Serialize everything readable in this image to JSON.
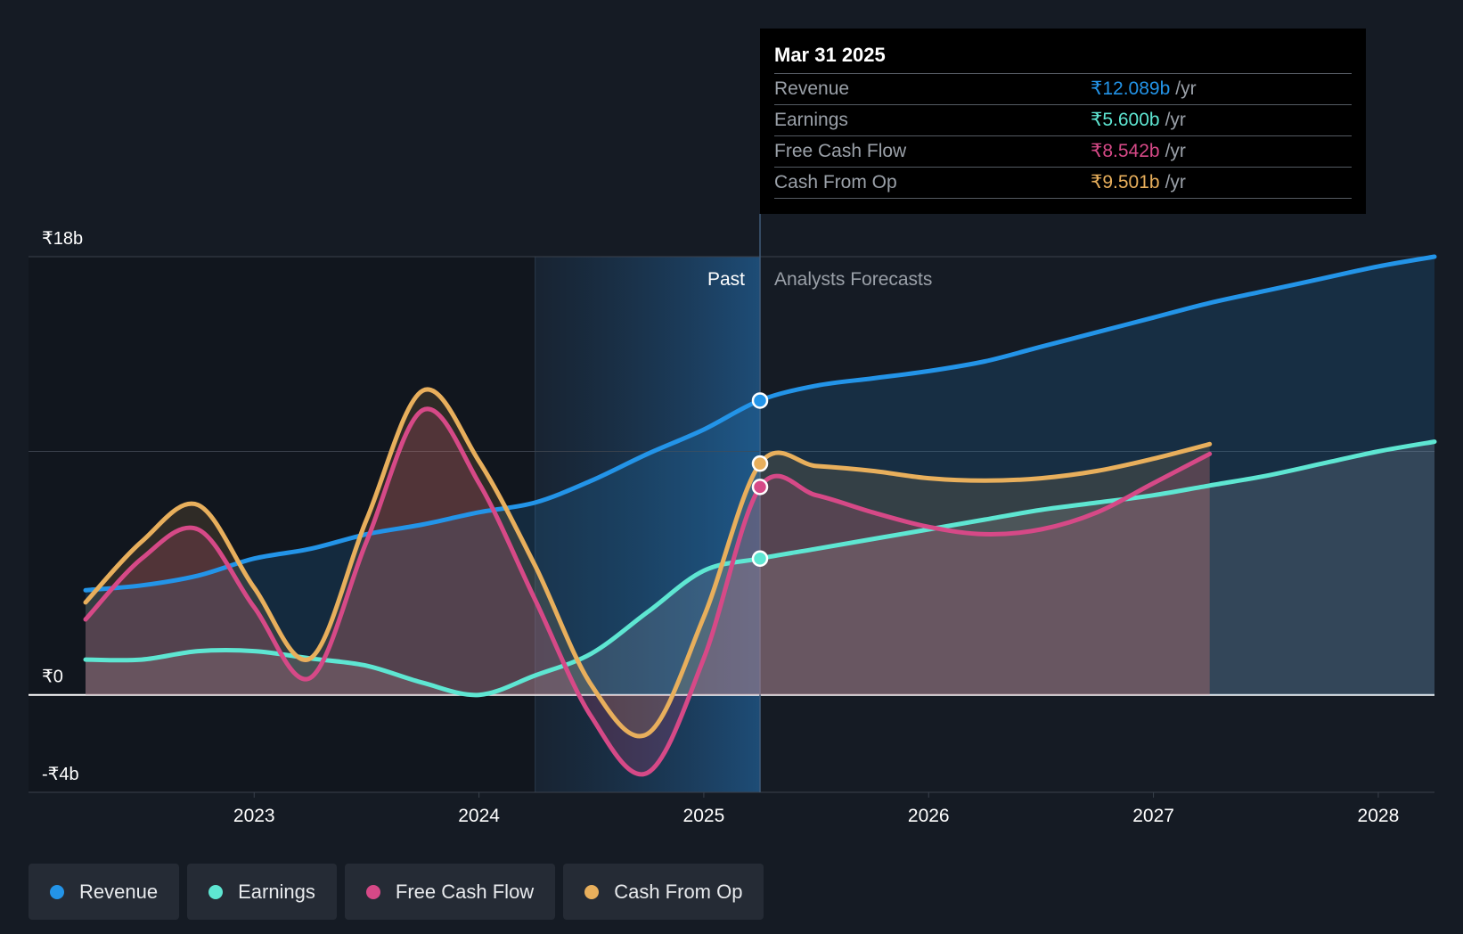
{
  "chart_data": {
    "type": "line",
    "ylim": [
      -4,
      18
    ],
    "y_ticks": [
      {
        "value": 18,
        "label": "₹18b"
      },
      {
        "value": 0,
        "label": "₹0"
      },
      {
        "value": -4,
        "label": "-₹4b"
      }
    ],
    "x_range": [
      2022.25,
      2028.25
    ],
    "x_ticks": [
      {
        "value": 2023,
        "label": "2023"
      },
      {
        "value": 2024,
        "label": "2024"
      },
      {
        "value": 2025,
        "label": "2025"
      },
      {
        "value": 2026,
        "label": "2026"
      },
      {
        "value": 2027,
        "label": "2027"
      },
      {
        "value": 2028,
        "label": "2028"
      }
    ],
    "grid": true,
    "gridlines": [
      18,
      10,
      0
    ],
    "past_label": "Past",
    "forecast_label": "Analysts Forecasts",
    "divider_x": 2025.25,
    "highlight_start_x": 2024.25,
    "series": [
      {
        "name": "Revenue",
        "color": "#2394e8",
        "x": [
          2022.25,
          2022.5,
          2022.75,
          2023.0,
          2023.25,
          2023.5,
          2023.75,
          2024.0,
          2024.25,
          2024.5,
          2024.75,
          2025.0,
          2025.25,
          2025.5,
          2025.75,
          2026.0,
          2026.25,
          2026.5,
          2026.75,
          2027.0,
          2027.25,
          2027.5,
          2027.75,
          2028.0,
          2028.25
        ],
        "values": [
          4.3,
          4.5,
          4.9,
          5.6,
          6.0,
          6.6,
          7.0,
          7.5,
          7.9,
          8.8,
          9.9,
          10.9,
          12.1,
          12.7,
          13.0,
          13.3,
          13.7,
          14.3,
          14.9,
          15.5,
          16.1,
          16.6,
          17.1,
          17.6,
          18.0
        ]
      },
      {
        "name": "Earnings",
        "color": "#5ee6d2",
        "x": [
          2022.25,
          2022.5,
          2022.75,
          2023.0,
          2023.25,
          2023.5,
          2023.75,
          2024.0,
          2024.25,
          2024.5,
          2024.75,
          2025.0,
          2025.25,
          2025.5,
          2025.75,
          2026.0,
          2026.25,
          2026.5,
          2026.75,
          2027.0,
          2027.25,
          2027.5,
          2027.75,
          2028.0,
          2028.25
        ],
        "values": [
          1.45,
          1.45,
          1.8,
          1.8,
          1.5,
          1.2,
          0.5,
          0.0,
          0.8,
          1.7,
          3.4,
          5.1,
          5.6,
          6.0,
          6.4,
          6.8,
          7.2,
          7.6,
          7.9,
          8.2,
          8.6,
          9.0,
          9.5,
          10.0,
          10.4
        ]
      },
      {
        "name": "Free Cash Flow",
        "color": "#d64987",
        "x": [
          2022.25,
          2022.5,
          2022.75,
          2023.0,
          2023.25,
          2023.5,
          2023.75,
          2024.0,
          2024.25,
          2024.5,
          2024.75,
          2025.0,
          2025.25,
          2025.5,
          2025.75,
          2026.0,
          2026.25,
          2026.5,
          2026.75,
          2027.0,
          2027.25
        ],
        "values": [
          3.1,
          5.6,
          6.8,
          3.6,
          0.7,
          6.3,
          11.7,
          8.7,
          3.9,
          -0.9,
          -3.2,
          1.5,
          8.542,
          8.2,
          7.5,
          6.9,
          6.6,
          6.8,
          7.5,
          8.7,
          9.9
        ]
      },
      {
        "name": "Cash From Op",
        "color": "#e8af5c",
        "x": [
          2022.25,
          2022.5,
          2022.75,
          2023.0,
          2023.25,
          2023.5,
          2023.75,
          2024.0,
          2024.25,
          2024.5,
          2024.75,
          2025.0,
          2025.25,
          2025.5,
          2025.75,
          2026.0,
          2026.25,
          2026.5,
          2026.75,
          2027.0,
          2027.25
        ],
        "values": [
          3.8,
          6.3,
          7.8,
          4.4,
          1.5,
          7.2,
          12.5,
          9.6,
          5.3,
          0.4,
          -1.6,
          3.2,
          9.501,
          9.4,
          9.2,
          8.9,
          8.8,
          8.9,
          9.2,
          9.7,
          10.3
        ]
      }
    ],
    "highlight_points": [
      {
        "series": "Revenue",
        "x": 2025.25,
        "y": 12.089
      },
      {
        "series": "Earnings",
        "x": 2025.25,
        "y": 5.6
      },
      {
        "series": "Free Cash Flow",
        "x": 2025.25,
        "y": 8.542
      },
      {
        "series": "Cash From Op",
        "x": 2025.25,
        "y": 9.501
      }
    ]
  },
  "tooltip": {
    "date": "Mar 31 2025",
    "rows": [
      {
        "label": "Revenue",
        "value": "₹12.089b",
        "unit": "/yr",
        "color": "#2394e8"
      },
      {
        "label": "Earnings",
        "value": "₹5.600b",
        "unit": "/yr",
        "color": "#5ee6d2"
      },
      {
        "label": "Free Cash Flow",
        "value": "₹8.542b",
        "unit": "/yr",
        "color": "#d64987"
      },
      {
        "label": "Cash From Op",
        "value": "₹9.501b",
        "unit": "/yr",
        "color": "#e8af5c"
      }
    ]
  },
  "legend": [
    {
      "label": "Revenue",
      "color": "#2394e8"
    },
    {
      "label": "Earnings",
      "color": "#5ee6d2"
    },
    {
      "label": "Free Cash Flow",
      "color": "#d64987"
    },
    {
      "label": "Cash From Op",
      "color": "#e8af5c"
    }
  ]
}
